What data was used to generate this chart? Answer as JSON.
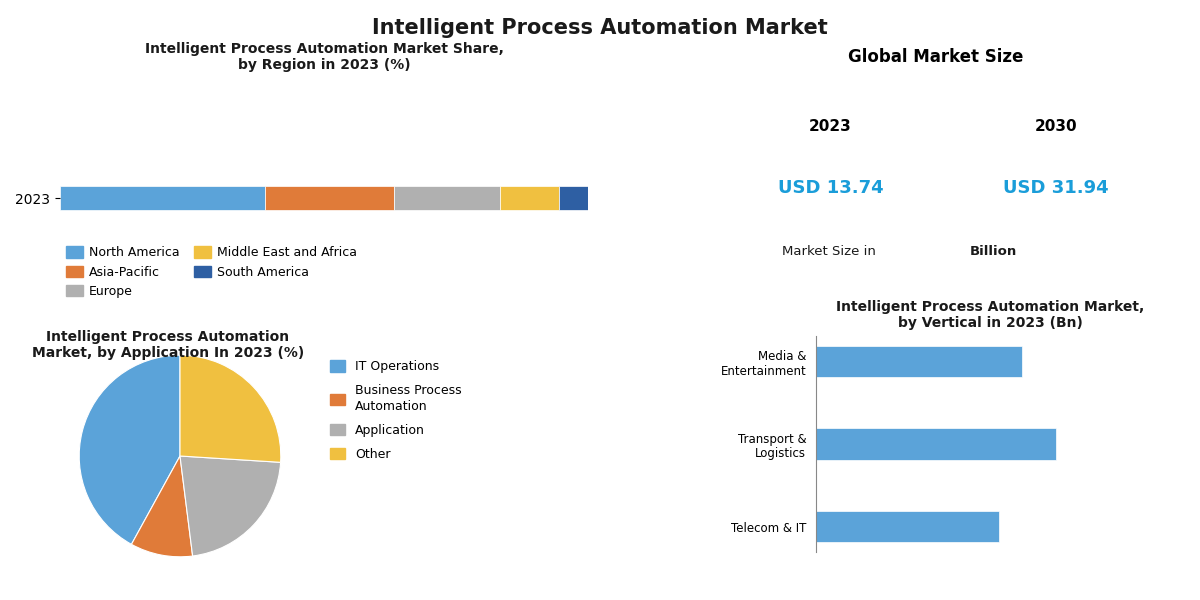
{
  "title": "Intelligent Process Automation Market",
  "title_color": "#1a1a1a",
  "background_color": "#ffffff",
  "stacked_bar": {
    "title": "Intelligent Process Automation Market Share,\nby Region in 2023 (%)",
    "year_label": "2023",
    "segments": [
      {
        "label": "North America",
        "value": 35,
        "color": "#5ba3d9"
      },
      {
        "label": "Asia-Pacific",
        "value": 22,
        "color": "#e07b39"
      },
      {
        "label": "Europe",
        "value": 18,
        "color": "#b0b0b0"
      },
      {
        "label": "Middle East and Africa",
        "value": 10,
        "color": "#f0c040"
      },
      {
        "label": "South America",
        "value": 5,
        "color": "#2e5fa3"
      }
    ]
  },
  "global_market": {
    "title": "Global Market Size",
    "year1": "2023",
    "year2": "2030",
    "value1": "USD 13.74",
    "value2": "USD 31.94",
    "note1": "Market Size in ",
    "note2": "Billion",
    "value_color": "#1a9dd9"
  },
  "pie_chart": {
    "title": "Intelligent Process Automation\nMarket, by Application In 2023 (%)",
    "segments": [
      {
        "label": "IT Operations",
        "value": 42,
        "color": "#5ba3d9"
      },
      {
        "label": "Business Process\nAutomation",
        "value": 10,
        "color": "#e07b39"
      },
      {
        "label": "Application",
        "value": 22,
        "color": "#b0b0b0"
      },
      {
        "label": "Other",
        "value": 26,
        "color": "#f0c040"
      }
    ]
  },
  "bar_chart": {
    "title": "Intelligent Process Automation Market,\nby Vertical in 2023 (Bn)",
    "categories": [
      "Media &\nEntertainment",
      "Transport &\nLogistics",
      "Telecom & IT"
    ],
    "values": [
      1.8,
      2.1,
      1.6
    ],
    "color": "#5ba3d9"
  }
}
